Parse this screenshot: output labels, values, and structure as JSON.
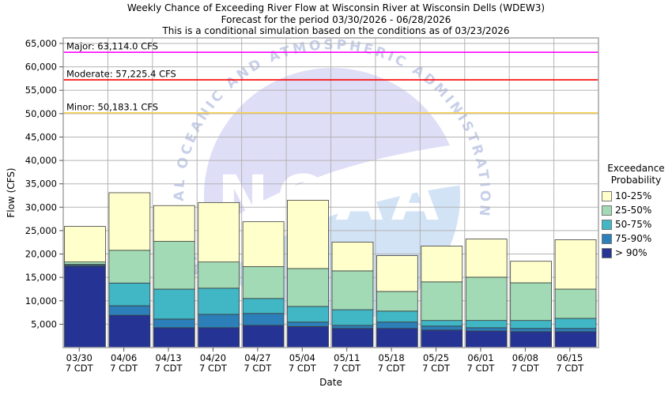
{
  "header": {
    "title_line1": "Weekly Chance of Exceeding River Flow at Wisconsin River at Wisconsin Dells (WDEW3)",
    "title_line2": "Forecast for the period 03/30/2026 - 06/28/2026",
    "title_line3": "This is a conditional simulation based on the conditions as of 03/23/2026"
  },
  "axes": {
    "xlabel": "Date",
    "ylabel": "Flow (CFS)",
    "ymin": 0,
    "ymax": 65000,
    "ytick_step": 5000,
    "grid_color": "#b3b3b3",
    "box_color": "#aaaaaa"
  },
  "flood_categories": [
    {
      "name": "Major",
      "label": "Major: 63,114.0 CFS",
      "value": 63114.0,
      "color": "#ff00ff"
    },
    {
      "name": "Moderate",
      "label": "Moderate: 57,225.4 CFS",
      "value": 57225.4,
      "color": "#fd0002"
    },
    {
      "name": "Minor",
      "label": "Minor: 50,183.1 CFS",
      "value": 50183.1,
      "color": "#ffd24d"
    }
  ],
  "legend": {
    "title_line1": "Exceedance",
    "title_line2": "Probability",
    "items": [
      {
        "label": "10-25%",
        "color": "#ffffcc"
      },
      {
        "label": "25-50%",
        "color": "#a1dab4"
      },
      {
        "label": "50-75%",
        "color": "#41b6c4"
      },
      {
        "label": "75-90%",
        "color": "#2c7fb8"
      },
      {
        "label": "> 90%",
        "color": "#253494"
      }
    ]
  },
  "watermark": {
    "text": "NOAA",
    "ring_text": "NATIONAL OCEANIC AND ATMOSPHERIC ADMINISTRATION",
    "disk_color": "#dfdef7",
    "sea_color": "#d2e3f6",
    "ring_text_color": "#c7cfe9"
  },
  "chart_data": {
    "type": "bar",
    "stacked": true,
    "title": "Weekly Chance of Exceeding River Flow at Wisconsin River at Wisconsin Dells (WDEW3)",
    "xlabel": "Date",
    "ylabel": "Flow (CFS)",
    "ylim": [
      0,
      65000
    ],
    "grid": true,
    "legend_position": "right",
    "categories": [
      "03/30",
      "04/06",
      "04/13",
      "04/20",
      "04/27",
      "05/04",
      "05/11",
      "05/18",
      "05/25",
      "06/01",
      "06/08",
      "06/15"
    ],
    "category_sublabel": "7 CDT",
    "series": [
      {
        "name": "> 90%",
        "color": "#253494",
        "cumulative_top_cfs": [
          17400,
          6900,
          4250,
          4250,
          4750,
          4500,
          4100,
          4100,
          3750,
          3550,
          3400,
          3400
        ]
      },
      {
        "name": "75-90%",
        "color": "#2c7fb8",
        "cumulative_top_cfs": [
          17600,
          8950,
          6100,
          7100,
          7300,
          5450,
          4750,
          5450,
          4600,
          4250,
          4100,
          4100
        ]
      },
      {
        "name": "50-75%",
        "color": "#41b6c4",
        "cumulative_top_cfs": [
          17800,
          13800,
          12500,
          12700,
          10500,
          8800,
          8100,
          7800,
          5800,
          5800,
          5800,
          6250
        ]
      },
      {
        "name": "25-50%",
        "color": "#a1dab4",
        "cumulative_top_cfs": [
          18300,
          20800,
          22700,
          18300,
          17300,
          16900,
          16400,
          12000,
          14050,
          15050,
          13850,
          12500
        ]
      },
      {
        "name": "10-25%",
        "color": "#ffffcc",
        "cumulative_top_cfs": [
          25900,
          33100,
          30350,
          31000,
          26900,
          31500,
          22550,
          19650,
          21700,
          23200,
          18450,
          23050
        ]
      }
    ]
  }
}
